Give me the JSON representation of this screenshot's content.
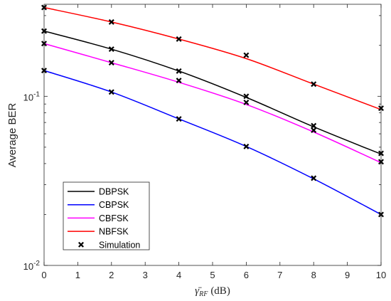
{
  "chart_data": {
    "type": "line",
    "title": "",
    "xlabel_parts": {
      "symbol": "γ̄",
      "subscript": "RF",
      "unit": "(dB)"
    },
    "ylabel": "Average BER",
    "x_scale": "linear",
    "y_scale": "log",
    "xlim": [
      0,
      10
    ],
    "ylim": [
      0.01,
      0.35
    ],
    "x_ticks": [
      "0",
      "1",
      "2",
      "3",
      "4",
      "5",
      "6",
      "7",
      "8",
      "9",
      "10"
    ],
    "y_tick_labels": [
      {
        "value": 0.01,
        "base": "10",
        "exp": "-2"
      },
      {
        "value": 0.1,
        "base": "10",
        "exp": "-1"
      }
    ],
    "grid": false,
    "legend_position": "bottom-left",
    "x": [
      0,
      2,
      4,
      6,
      8,
      10
    ],
    "series": [
      {
        "name": "DBPSK",
        "color": "#000000",
        "values": [
          0.243,
          0.19,
          0.141,
          0.0985,
          0.066,
          0.0455
        ]
      },
      {
        "name": "CBPSK",
        "color": "#0000ff",
        "values": [
          0.142,
          0.106,
          0.0735,
          0.0505,
          0.0325,
          0.02
        ]
      },
      {
        "name": "CBFSK",
        "color": "#ff00ff",
        "values": [
          0.205,
          0.158,
          0.121,
          0.0895,
          0.0615,
          0.0405
        ]
      },
      {
        "name": "NBFSK",
        "color": "#ff0000",
        "values": [
          0.335,
          0.275,
          0.218,
          0.167,
          0.118,
          0.0835
        ]
      }
    ],
    "simulation": {
      "name": "Simulation",
      "marker": "x",
      "color": "#000000",
      "points": [
        [
          0,
          0.335
        ],
        [
          2,
          0.275
        ],
        [
          4,
          0.218
        ],
        [
          6,
          0.175
        ],
        [
          8,
          0.118
        ],
        [
          10,
          0.085
        ],
        [
          0,
          0.243
        ],
        [
          2,
          0.19
        ],
        [
          4,
          0.141
        ],
        [
          6,
          0.1
        ],
        [
          8,
          0.067
        ],
        [
          10,
          0.046
        ],
        [
          0,
          0.205
        ],
        [
          2,
          0.158
        ],
        [
          4,
          0.124
        ],
        [
          6,
          0.092
        ],
        [
          8,
          0.063
        ],
        [
          10,
          0.041
        ],
        [
          0,
          0.142
        ],
        [
          2,
          0.106
        ],
        [
          4,
          0.0735
        ],
        [
          6,
          0.0505
        ],
        [
          8,
          0.0328
        ],
        [
          10,
          0.02
        ]
      ]
    }
  }
}
